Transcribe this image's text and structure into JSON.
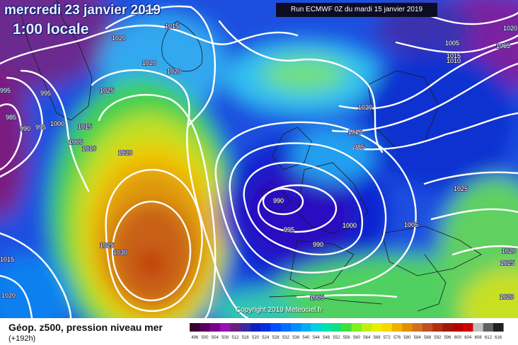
{
  "header": {
    "date": "mercredi 23 janvier 2019",
    "time": "1:00 locale",
    "run": "Run ECMWF 0Z du mardi 15 janvier 2019"
  },
  "map": {
    "copyright": "Copyright 2019 Meteociel.fr",
    "isobar_labels": [
      "1015",
      "1020",
      "1020",
      "1020",
      "1025",
      "995",
      "995",
      "985",
      "990",
      "995",
      "1000",
      "1015",
      "1005",
      "1010",
      "1020",
      "1025",
      "1030",
      "1015",
      "1020",
      "1020",
      "1015",
      "985",
      "990",
      "995",
      "990",
      "1000",
      "1005",
      "1005",
      "1005",
      "1010",
      "1005",
      "1025",
      "1025",
      "1020",
      "1015",
      "1020",
      "1020"
    ],
    "centers": {
      "low": "985",
      "high": "1030"
    }
  },
  "legend": {
    "title": "Géop. z500, pression niveau mer",
    "subtitle": "(+192h)",
    "scale_values": [
      "496",
      "500",
      "504",
      "508",
      "512",
      "516",
      "520",
      "524",
      "528",
      "532",
      "536",
      "540",
      "544",
      "548",
      "552",
      "556",
      "560",
      "564",
      "568",
      "572",
      "576",
      "580",
      "584",
      "588",
      "592",
      "596",
      "600",
      "604",
      "608",
      "612",
      "616"
    ],
    "scale_colors": [
      "#3a0030",
      "#5a0060",
      "#7a0090",
      "#9a10b0",
      "#6a2080",
      "#3a2aa0",
      "#1020c0",
      "#0030e0",
      "#0050ff",
      "#0070ff",
      "#0090ff",
      "#00b0f0",
      "#00d0e0",
      "#00e0b0",
      "#10e080",
      "#40e040",
      "#80f020",
      "#c0f010",
      "#e8f000",
      "#f8d800",
      "#f0b000",
      "#e09000",
      "#d07020",
      "#c05020",
      "#b03010",
      "#a01808",
      "#b80000",
      "#d00000",
      "#c0c0c0",
      "#606060",
      "#202020"
    ]
  }
}
